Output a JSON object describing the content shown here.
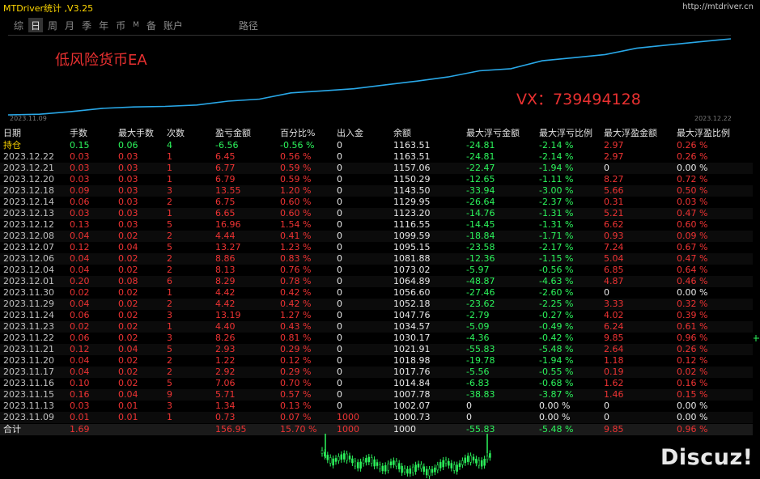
{
  "window": {
    "title": "MTDriver统计 ,V3.25",
    "url": "http://mtdriver.cn"
  },
  "nav": [
    {
      "label": "综",
      "active": false
    },
    {
      "label": "日",
      "active": true
    },
    {
      "label": "周",
      "active": false
    },
    {
      "label": "月",
      "active": false
    },
    {
      "label": "季",
      "active": false
    },
    {
      "label": "年",
      "active": false
    },
    {
      "label": "币",
      "active": false
    },
    {
      "label": "M",
      "active": false
    },
    {
      "label": "备",
      "active": false
    },
    {
      "label": "账户",
      "active": false
    },
    {
      "label": "路径",
      "active": false
    }
  ],
  "chart": {
    "label_name": "低风险货币EA",
    "label_vx": "VX：739494128",
    "date_start": "2023.11.09",
    "date_end": "2023.12.22",
    "line_color": "#29a8e8"
  },
  "chart_data": {
    "type": "line",
    "title": "",
    "x": [
      "2023.11.09",
      "2023.11.13",
      "2023.11.15",
      "2023.11.16",
      "2023.11.17",
      "2023.11.20",
      "2023.11.21",
      "2023.11.22",
      "2023.11.23",
      "2023.11.24",
      "2023.11.29",
      "2023.11.30",
      "2023.12.01",
      "2023.12.04",
      "2023.12.06",
      "2023.12.07",
      "2023.12.08",
      "2023.12.12",
      "2023.12.13",
      "2023.12.14",
      "2023.12.18",
      "2023.12.20",
      "2023.12.21",
      "2023.12.22"
    ],
    "series": [
      {
        "values": [
          1000.73,
          1002.07,
          1007.78,
          1014.84,
          1017.76,
          1018.98,
          1021.91,
          1030.17,
          1034.57,
          1047.76,
          1052.18,
          1056.6,
          1064.89,
          1073.02,
          1081.88,
          1095.15,
          1099.59,
          1116.55,
          1123.2,
          1129.95,
          1143.5,
          1150.29,
          1157.06,
          1163.51
        ]
      }
    ]
  },
  "table": {
    "headers": [
      "日期",
      "手数",
      "最大手数",
      "次数",
      "盈亏金额",
      "百分比%",
      "出入金",
      "余额",
      "最大浮亏金额",
      "最大浮亏比例",
      "最大浮盈金额",
      "最大浮盈比例"
    ],
    "holding": [
      "持仓",
      "0.15",
      "0.06",
      "4",
      "-6.56",
      "-0.56 %",
      "0",
      "1163.51",
      "-24.81",
      "-2.14 %",
      "2.97",
      "0.26 %"
    ],
    "rows": [
      [
        "2023.12.22",
        "0.03",
        "0.03",
        "1",
        "6.45",
        "0.56 %",
        "0",
        "1163.51",
        "-24.81",
        "-2.14 %",
        "2.97",
        "0.26 %"
      ],
      [
        "2023.12.21",
        "0.03",
        "0.03",
        "1",
        "6.77",
        "0.59 %",
        "0",
        "1157.06",
        "-22.47",
        "-1.94 %",
        "0",
        "0.00 %"
      ],
      [
        "2023.12.20",
        "0.03",
        "0.03",
        "1",
        "6.79",
        "0.59 %",
        "0",
        "1150.29",
        "-12.65",
        "-1.11 %",
        "8.27",
        "0.72 %"
      ],
      [
        "2023.12.18",
        "0.09",
        "0.03",
        "3",
        "13.55",
        "1.20 %",
        "0",
        "1143.50",
        "-33.94",
        "-3.00 %",
        "5.66",
        "0.50 %"
      ],
      [
        "2023.12.14",
        "0.06",
        "0.03",
        "2",
        "6.75",
        "0.60 %",
        "0",
        "1129.95",
        "-26.64",
        "-2.37 %",
        "0.31",
        "0.03 %"
      ],
      [
        "2023.12.13",
        "0.03",
        "0.03",
        "1",
        "6.65",
        "0.60 %",
        "0",
        "1123.20",
        "-14.76",
        "-1.31 %",
        "5.21",
        "0.47 %"
      ],
      [
        "2023.12.12",
        "0.13",
        "0.03",
        "5",
        "16.96",
        "1.54 %",
        "0",
        "1116.55",
        "-14.45",
        "-1.31 %",
        "6.62",
        "0.60 %"
      ],
      [
        "2023.12.08",
        "0.04",
        "0.02",
        "2",
        "4.44",
        "0.41 %",
        "0",
        "1099.59",
        "-18.84",
        "-1.71 %",
        "0.93",
        "0.09 %"
      ],
      [
        "2023.12.07",
        "0.12",
        "0.04",
        "5",
        "13.27",
        "1.23 %",
        "0",
        "1095.15",
        "-23.58",
        "-2.17 %",
        "7.24",
        "0.67 %"
      ],
      [
        "2023.12.06",
        "0.04",
        "0.02",
        "2",
        "8.86",
        "0.83 %",
        "0",
        "1081.88",
        "-12.36",
        "-1.15 %",
        "5.04",
        "0.47 %"
      ],
      [
        "2023.12.04",
        "0.04",
        "0.02",
        "2",
        "8.13",
        "0.76 %",
        "0",
        "1073.02",
        "-5.97",
        "-0.56 %",
        "6.85",
        "0.64 %"
      ],
      [
        "2023.12.01",
        "0.20",
        "0.08",
        "6",
        "8.29",
        "0.78 %",
        "0",
        "1064.89",
        "-48.87",
        "-4.63 %",
        "4.87",
        "0.46 %"
      ],
      [
        "2023.11.30",
        "0.02",
        "0.02",
        "1",
        "4.42",
        "0.42 %",
        "0",
        "1056.60",
        "-27.46",
        "-2.60 %",
        "0",
        "0.00 %"
      ],
      [
        "2023.11.29",
        "0.04",
        "0.02",
        "2",
        "4.42",
        "0.42 %",
        "0",
        "1052.18",
        "-23.62",
        "-2.25 %",
        "3.33",
        "0.32 %"
      ],
      [
        "2023.11.24",
        "0.06",
        "0.02",
        "3",
        "13.19",
        "1.27 %",
        "0",
        "1047.76",
        "-2.79",
        "-0.27 %",
        "4.02",
        "0.39 %"
      ],
      [
        "2023.11.23",
        "0.02",
        "0.02",
        "1",
        "4.40",
        "0.43 %",
        "0",
        "1034.57",
        "-5.09",
        "-0.49 %",
        "6.24",
        "0.61 %"
      ],
      [
        "2023.11.22",
        "0.06",
        "0.02",
        "3",
        "8.26",
        "0.81 %",
        "0",
        "1030.17",
        "-4.36",
        "-0.42 %",
        "9.85",
        "0.96 %"
      ],
      [
        "2023.11.21",
        "0.12",
        "0.04",
        "5",
        "2.93",
        "0.29 %",
        "0",
        "1021.91",
        "-55.83",
        "-5.48 %",
        "2.64",
        "0.26 %"
      ],
      [
        "2023.11.20",
        "0.04",
        "0.02",
        "2",
        "1.22",
        "0.12 %",
        "0",
        "1018.98",
        "-19.78",
        "-1.94 %",
        "1.18",
        "0.12 %"
      ],
      [
        "2023.11.17",
        "0.04",
        "0.02",
        "2",
        "2.92",
        "0.29 %",
        "0",
        "1017.76",
        "-5.56",
        "-0.55 %",
        "0.19",
        "0.02 %"
      ],
      [
        "2023.11.16",
        "0.10",
        "0.02",
        "5",
        "7.06",
        "0.70 %",
        "0",
        "1014.84",
        "-6.83",
        "-0.68 %",
        "1.62",
        "0.16 %"
      ],
      [
        "2023.11.15",
        "0.16",
        "0.04",
        "9",
        "5.71",
        "0.57 %",
        "0",
        "1007.78",
        "-38.83",
        "-3.87 %",
        "1.46",
        "0.15 %"
      ],
      [
        "2023.11.13",
        "0.03",
        "0.01",
        "3",
        "1.34",
        "0.13 %",
        "0",
        "1002.07",
        "0",
        "0.00 %",
        "0",
        "0.00 %"
      ],
      [
        "2023.11.09",
        "0.01",
        "0.01",
        "1",
        "0.73",
        "0.07 %",
        "1000",
        "1000.73",
        "0",
        "0.00 %",
        "0",
        "0.00 %"
      ]
    ],
    "total": [
      "合计",
      "1.69",
      "",
      "",
      "156.95",
      "15.70 %",
      "1000",
      "1000",
      "-55.83",
      "-5.48 %",
      "9.85",
      "0.96 %"
    ]
  },
  "watermark": "Discuz!",
  "colors": {
    "positive": "#ee3333",
    "negative": "#2cf55c",
    "title": "#ffd700",
    "candle_up": "#2cf55c"
  }
}
